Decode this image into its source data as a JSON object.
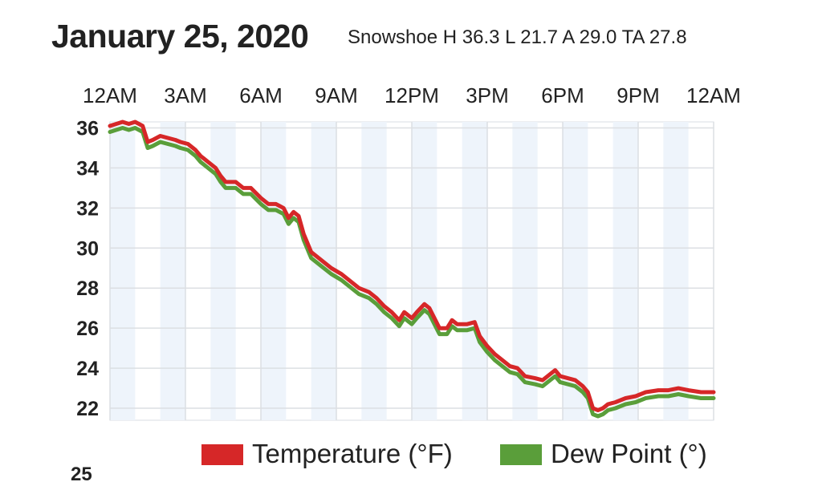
{
  "header": {
    "date": "January 25, 2020",
    "summary": "Snowshoe H 36.3 L 21.7 A 29.0 TA 27.8"
  },
  "chart_data": {
    "type": "line",
    "x_ticks": [
      "12AM",
      "3AM",
      "6AM",
      "9AM",
      "12PM",
      "3PM",
      "6PM",
      "9PM",
      "12AM"
    ],
    "y_ticks": [
      "22",
      "24",
      "26",
      "28",
      "30",
      "32",
      "34",
      "36"
    ],
    "ylim": [
      21.4,
      36.3
    ],
    "x_range_hours": [
      0,
      24
    ],
    "grid": true,
    "legend_position": "bottom",
    "partial_tick_below": "25",
    "series": [
      {
        "name": "Temperature (°F)",
        "color": "#d62728",
        "points": [
          [
            0,
            36.1
          ],
          [
            0.25,
            36.2
          ],
          [
            0.5,
            36.3
          ],
          [
            0.75,
            36.2
          ],
          [
            1.0,
            36.3
          ],
          [
            1.3,
            36.1
          ],
          [
            1.5,
            35.3
          ],
          [
            1.7,
            35.4
          ],
          [
            2.0,
            35.6
          ],
          [
            2.3,
            35.5
          ],
          [
            2.6,
            35.4
          ],
          [
            2.8,
            35.3
          ],
          [
            3.1,
            35.2
          ],
          [
            3.4,
            34.9
          ],
          [
            3.6,
            34.6
          ],
          [
            3.9,
            34.3
          ],
          [
            4.2,
            34.0
          ],
          [
            4.4,
            33.6
          ],
          [
            4.6,
            33.3
          ],
          [
            5.0,
            33.3
          ],
          [
            5.3,
            33.0
          ],
          [
            5.6,
            33.0
          ],
          [
            6.0,
            32.5
          ],
          [
            6.3,
            32.2
          ],
          [
            6.6,
            32.2
          ],
          [
            6.9,
            32.0
          ],
          [
            7.1,
            31.5
          ],
          [
            7.3,
            31.8
          ],
          [
            7.5,
            31.6
          ],
          [
            7.7,
            30.7
          ],
          [
            8.0,
            29.8
          ],
          [
            8.4,
            29.4
          ],
          [
            8.8,
            29.0
          ],
          [
            9.2,
            28.7
          ],
          [
            9.5,
            28.4
          ],
          [
            9.9,
            28.0
          ],
          [
            10.3,
            27.8
          ],
          [
            10.6,
            27.5
          ],
          [
            10.9,
            27.1
          ],
          [
            11.2,
            26.8
          ],
          [
            11.5,
            26.4
          ],
          [
            11.7,
            26.8
          ],
          [
            12.0,
            26.5
          ],
          [
            12.2,
            26.8
          ],
          [
            12.5,
            27.2
          ],
          [
            12.7,
            27.0
          ],
          [
            12.9,
            26.5
          ],
          [
            13.1,
            26.0
          ],
          [
            13.4,
            26.0
          ],
          [
            13.6,
            26.4
          ],
          [
            13.8,
            26.2
          ],
          [
            14.2,
            26.2
          ],
          [
            14.5,
            26.3
          ],
          [
            14.7,
            25.6
          ],
          [
            15.0,
            25.1
          ],
          [
            15.3,
            24.7
          ],
          [
            15.6,
            24.4
          ],
          [
            15.9,
            24.1
          ],
          [
            16.2,
            24.0
          ],
          [
            16.5,
            23.6
          ],
          [
            16.9,
            23.5
          ],
          [
            17.2,
            23.4
          ],
          [
            17.5,
            23.7
          ],
          [
            17.7,
            23.9
          ],
          [
            17.9,
            23.6
          ],
          [
            18.2,
            23.5
          ],
          [
            18.5,
            23.4
          ],
          [
            18.8,
            23.1
          ],
          [
            19.0,
            22.8
          ],
          [
            19.2,
            22.0
          ],
          [
            19.4,
            21.9
          ],
          [
            19.6,
            22.0
          ],
          [
            19.8,
            22.2
          ],
          [
            20.1,
            22.3
          ],
          [
            20.5,
            22.5
          ],
          [
            20.9,
            22.6
          ],
          [
            21.3,
            22.8
          ],
          [
            21.8,
            22.9
          ],
          [
            22.2,
            22.9
          ],
          [
            22.6,
            23.0
          ],
          [
            23.0,
            22.9
          ],
          [
            23.5,
            22.8
          ],
          [
            24.0,
            22.8
          ]
        ]
      },
      {
        "name": "Dew Point (°)",
        "color": "#5a9e3a",
        "points": [
          [
            0,
            35.8
          ],
          [
            0.25,
            35.9
          ],
          [
            0.5,
            36.0
          ],
          [
            0.75,
            35.9
          ],
          [
            1.0,
            36.0
          ],
          [
            1.3,
            35.8
          ],
          [
            1.5,
            35.0
          ],
          [
            1.7,
            35.1
          ],
          [
            2.0,
            35.3
          ],
          [
            2.3,
            35.2
          ],
          [
            2.6,
            35.1
          ],
          [
            2.8,
            35.0
          ],
          [
            3.1,
            34.9
          ],
          [
            3.4,
            34.6
          ],
          [
            3.6,
            34.3
          ],
          [
            3.9,
            34.0
          ],
          [
            4.2,
            33.7
          ],
          [
            4.4,
            33.3
          ],
          [
            4.6,
            33.0
          ],
          [
            5.0,
            33.0
          ],
          [
            5.3,
            32.7
          ],
          [
            5.6,
            32.7
          ],
          [
            6.0,
            32.2
          ],
          [
            6.3,
            31.9
          ],
          [
            6.6,
            31.9
          ],
          [
            6.9,
            31.7
          ],
          [
            7.1,
            31.2
          ],
          [
            7.3,
            31.5
          ],
          [
            7.5,
            31.3
          ],
          [
            7.7,
            30.4
          ],
          [
            8.0,
            29.5
          ],
          [
            8.4,
            29.1
          ],
          [
            8.8,
            28.7
          ],
          [
            9.2,
            28.4
          ],
          [
            9.5,
            28.1
          ],
          [
            9.9,
            27.7
          ],
          [
            10.3,
            27.5
          ],
          [
            10.6,
            27.2
          ],
          [
            10.9,
            26.8
          ],
          [
            11.2,
            26.5
          ],
          [
            11.5,
            26.1
          ],
          [
            11.7,
            26.5
          ],
          [
            12.0,
            26.2
          ],
          [
            12.2,
            26.5
          ],
          [
            12.5,
            26.9
          ],
          [
            12.7,
            26.7
          ],
          [
            12.9,
            26.2
          ],
          [
            13.1,
            25.7
          ],
          [
            13.4,
            25.7
          ],
          [
            13.6,
            26.1
          ],
          [
            13.8,
            25.9
          ],
          [
            14.2,
            25.9
          ],
          [
            14.5,
            26.0
          ],
          [
            14.7,
            25.3
          ],
          [
            15.0,
            24.8
          ],
          [
            15.3,
            24.4
          ],
          [
            15.6,
            24.1
          ],
          [
            15.9,
            23.8
          ],
          [
            16.2,
            23.7
          ],
          [
            16.5,
            23.3
          ],
          [
            16.9,
            23.2
          ],
          [
            17.2,
            23.1
          ],
          [
            17.5,
            23.4
          ],
          [
            17.7,
            23.6
          ],
          [
            17.9,
            23.3
          ],
          [
            18.2,
            23.2
          ],
          [
            18.5,
            23.1
          ],
          [
            18.8,
            22.8
          ],
          [
            19.0,
            22.5
          ],
          [
            19.2,
            21.7
          ],
          [
            19.4,
            21.6
          ],
          [
            19.6,
            21.7
          ],
          [
            19.8,
            21.9
          ],
          [
            20.1,
            22.0
          ],
          [
            20.5,
            22.2
          ],
          [
            20.9,
            22.3
          ],
          [
            21.3,
            22.5
          ],
          [
            21.8,
            22.6
          ],
          [
            22.2,
            22.6
          ],
          [
            22.6,
            22.7
          ],
          [
            23.0,
            22.6
          ],
          [
            23.5,
            22.5
          ],
          [
            24.0,
            22.5
          ]
        ]
      }
    ]
  }
}
